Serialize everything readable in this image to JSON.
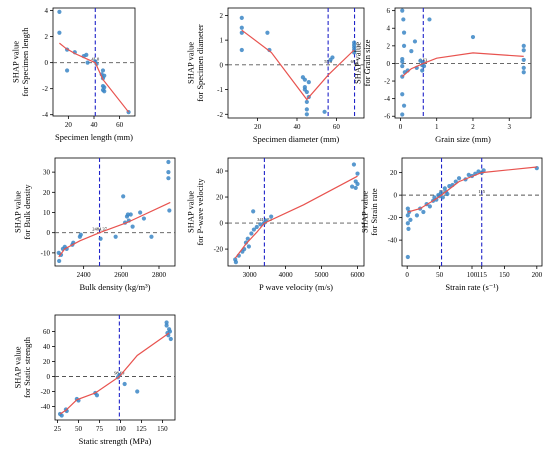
{
  "figure": {
    "colors": {
      "points": "#3b86c6",
      "fit": "#e8534f",
      "threshold": "#1f23c9",
      "zero": "#555555"
    }
  },
  "chart_data": [
    {
      "type": "scatter",
      "xlabel": "Specimen length (mm)",
      "ylabel": [
        "SHAP value",
        "for Specimen length"
      ],
      "xlim": [
        8,
        72
      ],
      "ylim": [
        -4.1,
        4.2
      ],
      "xticks": [
        20,
        40,
        60
      ],
      "yticks": [
        -4,
        -2,
        0,
        2,
        4
      ],
      "threshold": [
        {
          "x": 41,
          "label": "41.0"
        }
      ],
      "points": [
        [
          13,
          3.9
        ],
        [
          13,
          2.3
        ],
        [
          19,
          1.0
        ],
        [
          19,
          -0.6
        ],
        [
          25,
          0.8
        ],
        [
          32,
          0.5
        ],
        [
          34,
          0.6
        ],
        [
          35,
          0.0
        ],
        [
          41,
          0.1
        ],
        [
          42,
          -0.1
        ],
        [
          46,
          -0.9
        ],
        [
          47,
          -0.6
        ],
        [
          47,
          -1.2
        ],
        [
          47,
          -1.8
        ],
        [
          47,
          -2.1
        ],
        [
          48,
          -1.0
        ],
        [
          48,
          -1.9
        ],
        [
          48,
          -2.2
        ],
        [
          67,
          -3.8
        ]
      ],
      "fit": [
        [
          13,
          1.5
        ],
        [
          18,
          1.1
        ],
        [
          25,
          0.7
        ],
        [
          34,
          0.3
        ],
        [
          41,
          0.0
        ],
        [
          47,
          -1.3
        ],
        [
          67,
          -3.8
        ]
      ]
    },
    {
      "type": "scatter",
      "xlabel": "Specimen diameter (mm)",
      "ylabel": [
        "SHAP value",
        "for Specimen diameter"
      ],
      "xlim": [
        5,
        74
      ],
      "ylim": [
        -2.15,
        2.3
      ],
      "xticks": [
        20,
        40,
        60
      ],
      "yticks": [
        -2,
        -1,
        0,
        1,
        2
      ],
      "threshold": [
        {
          "x": 55.8,
          "label": "55.8"
        },
        {
          "x": 69.2,
          "label": "69.2"
        }
      ],
      "points": [
        [
          12,
          1.9
        ],
        [
          12,
          1.5
        ],
        [
          12,
          1.3
        ],
        [
          12,
          0.6
        ],
        [
          26,
          0.6
        ],
        [
          25,
          1.3
        ],
        [
          43,
          -0.5
        ],
        [
          44,
          -0.6
        ],
        [
          44,
          -0.9
        ],
        [
          44,
          -1.0
        ],
        [
          45,
          -1.1
        ],
        [
          45,
          -1.5
        ],
        [
          45,
          -1.8
        ],
        [
          45,
          -2.0
        ],
        [
          46,
          -0.7
        ],
        [
          46,
          -1.3
        ],
        [
          54,
          -1.9
        ],
        [
          57,
          0.2
        ],
        [
          58,
          0.3
        ],
        [
          69,
          0.6
        ],
        [
          69,
          0.8
        ],
        [
          69,
          0.9
        ],
        [
          69,
          0.7
        ],
        [
          69,
          0.5
        ]
      ],
      "fit": [
        [
          12,
          1.4
        ],
        [
          27,
          0.5
        ],
        [
          45,
          -1.4
        ],
        [
          56,
          -0.4
        ],
        [
          69,
          0.6
        ]
      ]
    },
    {
      "type": "scatter",
      "xlabel": "Grain size (mm)",
      "ylabel": [
        "SHAP value",
        "for Grain size"
      ],
      "xlim": [
        -0.15,
        3.6
      ],
      "ylim": [
        -6.2,
        6.3
      ],
      "xticks": [
        0,
        1,
        2,
        3
      ],
      "yticks": [
        -6,
        -4,
        -2,
        0,
        2,
        4,
        6
      ],
      "threshold": [
        {
          "x": 0.63,
          "label": "0.63"
        }
      ],
      "points": [
        [
          0.05,
          6.0
        ],
        [
          0.08,
          5.0
        ],
        [
          0.1,
          3.5
        ],
        [
          0.1,
          2.0
        ],
        [
          0.05,
          0.5
        ],
        [
          0.05,
          0.2
        ],
        [
          0.05,
          -0.3
        ],
        [
          0.05,
          -1.5
        ],
        [
          0.05,
          -3.5
        ],
        [
          0.05,
          -5.8
        ],
        [
          0.1,
          -4.8
        ],
        [
          0.12,
          -1.0
        ],
        [
          0.2,
          -0.8
        ],
        [
          0.3,
          1.4
        ],
        [
          0.4,
          2.5
        ],
        [
          0.45,
          -0.5
        ],
        [
          0.55,
          0.3
        ],
        [
          0.6,
          -0.2
        ],
        [
          0.6,
          -0.8
        ],
        [
          0.62,
          0.1
        ],
        [
          0.65,
          -0.3
        ],
        [
          0.8,
          5.0
        ],
        [
          2.0,
          3.0
        ],
        [
          3.4,
          2.0
        ],
        [
          3.4,
          1.5
        ],
        [
          3.4,
          0.4
        ],
        [
          3.4,
          -0.5
        ],
        [
          3.4,
          -1.0
        ]
      ],
      "fit": [
        [
          0.05,
          -1.5
        ],
        [
          0.3,
          -0.6
        ],
        [
          0.63,
          0.0
        ],
        [
          1.0,
          0.6
        ],
        [
          2.0,
          1.2
        ],
        [
          3.4,
          0.8
        ]
      ]
    },
    {
      "type": "scatter",
      "xlabel": "Bulk density (kg/m³)",
      "ylabel": [
        "SHAP value",
        "for Bulk density"
      ],
      "xlim": [
        2248,
        2885
      ],
      "ylim": [
        -16.5,
        37
      ],
      "xticks": [
        2400,
        2600,
        2800
      ],
      "yticks": [
        -10,
        0,
        10,
        20,
        30
      ],
      "threshold": [
        {
          "x": 2484.37,
          "label": "2484.37"
        }
      ],
      "points": [
        [
          2268,
          -10
        ],
        [
          2270,
          -14
        ],
        [
          2280,
          -11
        ],
        [
          2290,
          -8
        ],
        [
          2300,
          -7
        ],
        [
          2310,
          -8
        ],
        [
          2340,
          -6
        ],
        [
          2345,
          -5
        ],
        [
          2380,
          -2
        ],
        [
          2385,
          -1
        ],
        [
          2490,
          -3
        ],
        [
          2570,
          -2
        ],
        [
          2610,
          18
        ],
        [
          2620,
          5
        ],
        [
          2630,
          8
        ],
        [
          2635,
          9
        ],
        [
          2640,
          6
        ],
        [
          2650,
          9
        ],
        [
          2660,
          3
        ],
        [
          2700,
          10
        ],
        [
          2720,
          7
        ],
        [
          2760,
          -2
        ],
        [
          2850,
          35
        ],
        [
          2850,
          30
        ],
        [
          2850,
          27
        ],
        [
          2855,
          11
        ]
      ],
      "fit": [
        [
          2268,
          -12
        ],
        [
          2300,
          -8
        ],
        [
          2380,
          -4
        ],
        [
          2484,
          0
        ],
        [
          2630,
          5
        ],
        [
          2860,
          15
        ]
      ]
    },
    {
      "type": "scatter",
      "xlabel": "P wave velocity (m/s)",
      "ylabel": [
        "SHAP value",
        "for P-wave velocity"
      ],
      "xlim": [
        2400,
        6180
      ],
      "ylim": [
        -33,
        50
      ],
      "xticks": [
        3000,
        4000,
        5000,
        6000
      ],
      "yticks": [
        -20,
        0,
        20,
        40
      ],
      "threshold": [
        {
          "x": 3411.52,
          "label": "3411.52"
        }
      ],
      "points": [
        [
          2600,
          -28
        ],
        [
          2620,
          -30
        ],
        [
          2700,
          -25
        ],
        [
          2800,
          -22
        ],
        [
          2850,
          -20
        ],
        [
          2900,
          -15
        ],
        [
          2950,
          -12
        ],
        [
          2980,
          -18
        ],
        [
          3050,
          -8
        ],
        [
          3100,
          9
        ],
        [
          3120,
          -5
        ],
        [
          3200,
          -3
        ],
        [
          3300,
          -1
        ],
        [
          3400,
          0
        ],
        [
          3450,
          2
        ],
        [
          3600,
          5
        ],
        [
          5850,
          28
        ],
        [
          5900,
          45
        ],
        [
          5950,
          32
        ],
        [
          6000,
          38
        ],
        [
          6000,
          30
        ],
        [
          5950,
          27
        ]
      ],
      "fit": [
        [
          2600,
          -27
        ],
        [
          2900,
          -16
        ],
        [
          3200,
          -7
        ],
        [
          3411,
          0
        ],
        [
          4500,
          14
        ],
        [
          6000,
          36
        ]
      ]
    },
    {
      "type": "scatter",
      "xlabel": "Strain rate (s⁻¹)",
      "ylabel": [
        "SHAP value",
        "for Strain rate"
      ],
      "xlim": [
        -8,
        208
      ],
      "ylim": [
        -63,
        33
      ],
      "xticks": [
        0,
        50,
        100,
        115,
        150,
        200
      ],
      "yticks": [
        -40,
        -20,
        0,
        20
      ],
      "threshold": [
        {
          "x": 53,
          "label": "53"
        },
        {
          "x": 115,
          "label": "115"
        }
      ],
      "points": [
        [
          1,
          -18
        ],
        [
          1,
          -12
        ],
        [
          1,
          -25
        ],
        [
          1,
          -55
        ],
        [
          2,
          -30
        ],
        [
          3,
          -15
        ],
        [
          5,
          -22
        ],
        [
          15,
          -18
        ],
        [
          20,
          -12
        ],
        [
          25,
          -15
        ],
        [
          30,
          -8
        ],
        [
          35,
          -10
        ],
        [
          40,
          -5
        ],
        [
          42,
          -2
        ],
        [
          45,
          -4
        ],
        [
          48,
          0
        ],
        [
          50,
          -1
        ],
        [
          52,
          2
        ],
        [
          55,
          -2
        ],
        [
          58,
          6
        ],
        [
          60,
          3
        ],
        [
          62,
          1
        ],
        [
          65,
          8
        ],
        [
          70,
          9
        ],
        [
          75,
          12
        ],
        [
          80,
          15
        ],
        [
          90,
          14
        ],
        [
          95,
          18
        ],
        [
          100,
          17
        ],
        [
          105,
          19
        ],
        [
          110,
          21
        ],
        [
          115,
          20
        ],
        [
          118,
          22
        ],
        [
          200,
          24
        ]
      ],
      "fit": [
        [
          1,
          -15
        ],
        [
          20,
          -12
        ],
        [
          40,
          -5
        ],
        [
          53,
          0
        ],
        [
          80,
          12
        ],
        [
          115,
          20
        ],
        [
          200,
          25
        ]
      ]
    },
    {
      "type": "scatter",
      "xlabel": "Static strength (MPa)",
      "ylabel": [
        "SHAP value",
        "for Static strength"
      ],
      "xlim": [
        22,
        165
      ],
      "ylim": [
        -58,
        82
      ],
      "xticks": [
        25,
        50,
        75,
        100,
        125,
        150
      ],
      "yticks": [
        -40,
        -20,
        0,
        20,
        40,
        60
      ],
      "threshold": [
        {
          "x": 98.69,
          "label": "98.69"
        }
      ],
      "points": [
        [
          28,
          -50
        ],
        [
          30,
          -52
        ],
        [
          35,
          -44
        ],
        [
          36,
          -46
        ],
        [
          48,
          -30
        ],
        [
          50,
          -32
        ],
        [
          70,
          -22
        ],
        [
          72,
          -25
        ],
        [
          97,
          -1
        ],
        [
          99,
          2
        ],
        [
          105,
          -10
        ],
        [
          120,
          -20
        ],
        [
          155,
          72
        ],
        [
          155,
          68
        ],
        [
          156,
          58
        ],
        [
          157,
          55
        ],
        [
          158,
          63
        ],
        [
          159,
          60
        ],
        [
          160,
          50
        ]
      ],
      "fit": [
        [
          28,
          -50
        ],
        [
          35,
          -45
        ],
        [
          48,
          -31
        ],
        [
          70,
          -22
        ],
        [
          98.69,
          0
        ],
        [
          120,
          28
        ],
        [
          158,
          58
        ]
      ]
    }
  ]
}
